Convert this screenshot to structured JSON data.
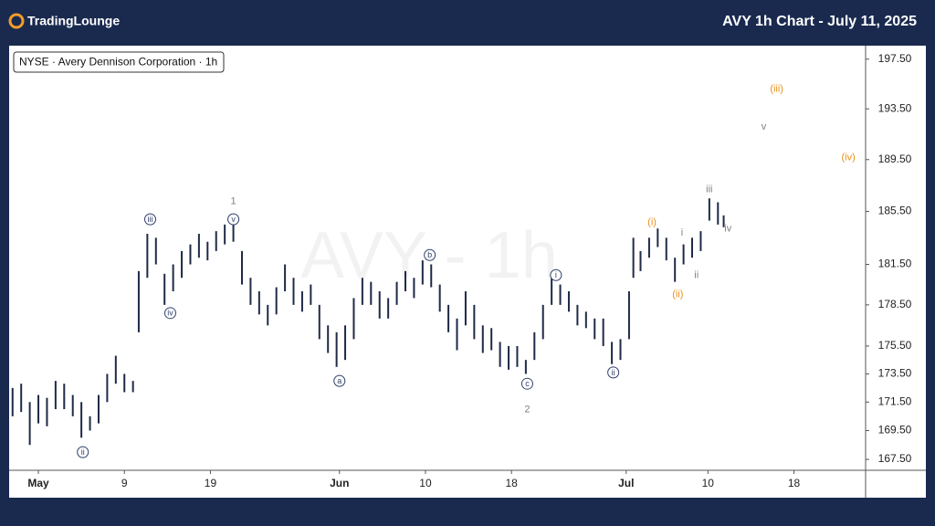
{
  "header": {
    "brand": "TradingLounge",
    "title": "AVY 1h Chart - July 11, 2025"
  },
  "chart_data": {
    "type": "ohlc",
    "legend": "NYSE · Avery Dennison Corporation · 1h",
    "watermark": "AVY - 1h",
    "color": "#1e2a47",
    "log_scale": true,
    "x": [
      -1.8,
      -1.2,
      -0.6,
      0,
      0.6,
      1.2,
      1.8,
      2.4,
      3,
      3.6,
      4.2,
      4.8,
      5.4,
      6,
      6.6,
      7,
      7.6,
      8.2,
      8.8,
      9.4,
      10,
      10.6,
      11.2,
      11.8,
      12.4,
      13,
      13.6,
      14.2,
      14.8,
      15.4,
      16,
      16.6,
      17.2,
      17.8,
      18.4,
      19,
      19.6,
      20.2,
      20.8,
      21.4,
      22,
      22.6,
      23.2,
      23.8,
      24.4,
      25,
      25.6,
      26.2,
      26.8,
      27.4,
      28,
      28.6,
      29.2,
      29.8,
      30.4,
      31,
      31.6,
      32.2,
      32.8,
      33.4,
      34,
      34.6,
      35.2,
      35.8,
      36.4,
      37,
      37.6,
      38.2,
      38.8,
      39.4,
      40,
      40.6,
      41.2,
      41.5,
      42,
      42.6,
      43.2,
      43.8,
      44.4,
      45,
      45.6,
      46.2,
      46.8,
      47.4,
      47.8
    ],
    "high": [
      172.5,
      172.8,
      171.5,
      172,
      171.8,
      173,
      172.8,
      172,
      171.5,
      170.5,
      172,
      173.5,
      174.8,
      173.5,
      173,
      181,
      183.8,
      183.5,
      180.8,
      181.5,
      182.5,
      183,
      183.8,
      183.2,
      184,
      184.5,
      184.6,
      182.5,
      180.5,
      179.5,
      178.5,
      179.8,
      181.5,
      180.5,
      179.5,
      180,
      178.5,
      177,
      176.5,
      177,
      179,
      180.5,
      180.2,
      179.5,
      179,
      180.2,
      181,
      180.5,
      181.8,
      181.5,
      180,
      178.5,
      177.5,
      179.5,
      178.5,
      177,
      176.8,
      175.8,
      175.5,
      175.5,
      174.5,
      176.5,
      178.5,
      180.5,
      180,
      179.5,
      178.5,
      178,
      177.5,
      177.5,
      175.8,
      176,
      179.5,
      183.5,
      182.5,
      183.5,
      184.2,
      183.5,
      182,
      183,
      183.5,
      184,
      186.5,
      186.2,
      185.2
    ],
    "low": [
      170.5,
      170.8,
      168.5,
      170,
      169.8,
      171,
      171,
      170.5,
      169,
      169.5,
      170,
      171.5,
      172.8,
      172.2,
      172.2,
      176.5,
      180.5,
      181.5,
      178.5,
      179.5,
      180.5,
      181.5,
      182,
      181.8,
      182.5,
      183,
      183.2,
      180,
      178.5,
      177.8,
      177,
      177.8,
      179.5,
      178.5,
      178,
      178.5,
      176,
      175,
      174,
      174.5,
      176,
      178.5,
      178.5,
      177.5,
      177.5,
      178.5,
      179.5,
      179,
      180,
      179.8,
      178,
      176.5,
      175.2,
      177,
      176,
      175,
      175.2,
      174,
      173.8,
      174,
      173.5,
      174.5,
      176,
      178.5,
      178.5,
      178,
      177,
      176.8,
      176,
      175.5,
      174.2,
      174.5,
      176,
      180.5,
      181,
      182,
      182.8,
      181.8,
      180.2,
      181.5,
      182,
      182.5,
      184.8,
      184.5,
      184.3
    ],
    "xlim": [
      -2.04,
      57.7
    ],
    "xticks": [
      {
        "value": 0,
        "label": "May"
      },
      {
        "value": 6,
        "label": "9"
      },
      {
        "value": 12,
        "label": "19"
      },
      {
        "value": 21,
        "label": "Jun"
      },
      {
        "value": 27,
        "label": "10"
      },
      {
        "value": 33,
        "label": "18"
      },
      {
        "value": 41,
        "label": "Jul"
      },
      {
        "value": 46.7,
        "label": "10"
      },
      {
        "value": 52.7,
        "label": "18"
      }
    ],
    "ylim": [
      166.75,
      198.6
    ],
    "yticks": [
      {
        "value": 167.5,
        "label": "167.50"
      },
      {
        "value": 169.5,
        "label": "169.50"
      },
      {
        "value": 171.5,
        "label": "171.50"
      },
      {
        "value": 173.5,
        "label": "173.50"
      },
      {
        "value": 175.5,
        "label": "175.50"
      },
      {
        "value": 178.5,
        "label": "178.50"
      },
      {
        "value": 181.5,
        "label": "181.50"
      },
      {
        "value": 185.5,
        "label": "185.50"
      },
      {
        "value": 189.5,
        "label": "189.50"
      },
      {
        "value": 193.5,
        "label": "193.50"
      },
      {
        "value": 197.5,
        "label": "197.50"
      }
    ],
    "annotations": [
      {
        "text": "iii",
        "x": 7.8,
        "y": 184.9,
        "color": "#2f3f6b",
        "circled": true
      },
      {
        "text": "iv",
        "x": 9.2,
        "y": 177.9,
        "color": "#2f3f6b",
        "circled": true
      },
      {
        "text": "ii",
        "x": 3.1,
        "y": 168.0,
        "color": "#2f3f6b",
        "circled": true
      },
      {
        "text": "v",
        "x": 13.6,
        "y": 184.9,
        "color": "#2f3f6b",
        "circled": true
      },
      {
        "text": "1",
        "x": 13.6,
        "y": 186.3,
        "color": "#808080",
        "circled": false
      },
      {
        "text": "a",
        "x": 21,
        "y": 173.0,
        "color": "#2f3f6b",
        "circled": true
      },
      {
        "text": "b",
        "x": 27.3,
        "y": 182.2,
        "color": "#2f3f6b",
        "circled": true
      },
      {
        "text": "c",
        "x": 34.1,
        "y": 172.8,
        "color": "#2f3f6b",
        "circled": true
      },
      {
        "text": "2",
        "x": 34.1,
        "y": 171.0,
        "color": "#808080",
        "circled": false
      },
      {
        "text": "i",
        "x": 36.1,
        "y": 180.7,
        "color": "#2f3f6b",
        "circled": true
      },
      {
        "text": "ii",
        "x": 40.1,
        "y": 173.6,
        "color": "#2f3f6b",
        "circled": true
      },
      {
        "text": "(i)",
        "x": 42.8,
        "y": 184.7,
        "color": "#e8901a",
        "circled": false
      },
      {
        "text": "(ii)",
        "x": 44.6,
        "y": 179.3,
        "color": "#e8901a",
        "circled": false
      },
      {
        "text": "i",
        "x": 44.9,
        "y": 183.9,
        "color": "#808080",
        "circled": false
      },
      {
        "text": "ii",
        "x": 45.9,
        "y": 180.7,
        "color": "#808080",
        "circled": false
      },
      {
        "text": "iii",
        "x": 46.8,
        "y": 187.2,
        "color": "#808080",
        "circled": false
      },
      {
        "text": "iv",
        "x": 48.1,
        "y": 184.2,
        "color": "#808080",
        "circled": false
      },
      {
        "text": "v",
        "x": 50.6,
        "y": 192.1,
        "color": "#808080",
        "circled": false
      },
      {
        "text": "(iii)",
        "x": 51.5,
        "y": 195.1,
        "color": "#e8901a",
        "circled": false
      },
      {
        "text": "(iv)",
        "x": 56.5,
        "y": 189.7,
        "color": "#e8901a",
        "circled": false
      }
    ]
  }
}
